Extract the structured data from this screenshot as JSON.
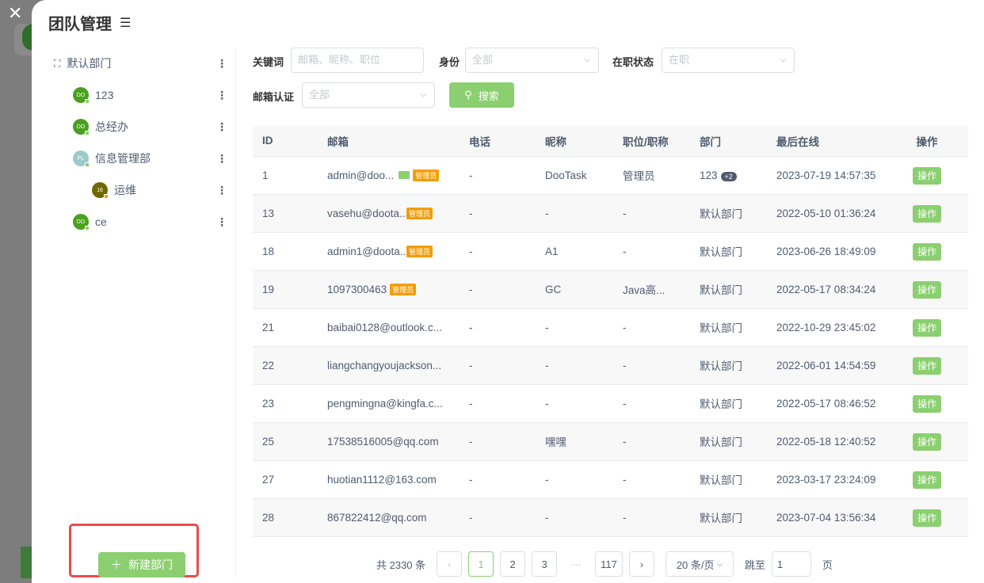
{
  "title": "团队管理",
  "sidebar": {
    "items": [
      {
        "label": "默认部门",
        "avatar": ""
      },
      {
        "label": "123",
        "avatar": "DO",
        "color": "#4aa11f"
      },
      {
        "label": "总经办",
        "avatar": "DO",
        "color": "#4aa11f"
      },
      {
        "label": "信息管理部",
        "avatar": "PL",
        "color": "#9ccac8"
      },
      {
        "label": "运维",
        "avatar": "16",
        "color": "#6f6a00"
      },
      {
        "label": "ce",
        "avatar": "DO",
        "color": "#4aa11f"
      }
    ],
    "new_dept": "新建部门"
  },
  "filters": {
    "keyword_label": "关键词",
    "keyword_placeholder": "邮箱、昵称、职位",
    "identity_label": "身份",
    "identity_value": "全部",
    "status_label": "在职状态",
    "status_value": "在职",
    "email_label": "邮箱认证",
    "email_value": "全部",
    "search": "搜索"
  },
  "table": {
    "headers": [
      "ID",
      "邮箱",
      "电话",
      "昵称",
      "职位/职称",
      "部门",
      "最后在线",
      "操作"
    ],
    "admin_tag": "管理员",
    "op": "操作",
    "rows": [
      {
        "id": "1",
        "email": "admin@doo...",
        "admin": true,
        "mail": true,
        "phone": "-",
        "nick": "DooTask",
        "pos": "管理员",
        "dept": "123",
        "extra": "+2",
        "online": "2023-07-19 14:57:35"
      },
      {
        "id": "13",
        "email": "vasehu@doota...",
        "admin": true,
        "phone": "-",
        "nick": "-",
        "pos": "-",
        "dept": "默认部门",
        "online": "2022-05-10 01:36:24"
      },
      {
        "id": "18",
        "email": "admin1@doota...",
        "admin": true,
        "phone": "-",
        "nick": "A1",
        "pos": "-",
        "dept": "默认部门",
        "online": "2023-06-26 18:49:09"
      },
      {
        "id": "19",
        "email": "1097300463",
        "admin": true,
        "phone": "-",
        "nick": "GC",
        "pos": "Java高...",
        "dept": "默认部门",
        "online": "2022-05-17 08:34:24"
      },
      {
        "id": "21",
        "email": "baibai0128@outlook.c...",
        "phone": "-",
        "nick": "-",
        "pos": "-",
        "dept": "默认部门",
        "online": "2022-10-29 23:45:02"
      },
      {
        "id": "22",
        "email": "liangchangyoujackson...",
        "phone": "-",
        "nick": "-",
        "pos": "-",
        "dept": "默认部门",
        "online": "2022-06-01 14:54:59"
      },
      {
        "id": "23",
        "email": "pengmingna@kingfa.c...",
        "phone": "-",
        "nick": "-",
        "pos": "-",
        "dept": "默认部门",
        "online": "2022-05-17 08:46:52"
      },
      {
        "id": "25",
        "email": "17538516005@qq.com",
        "phone": "-",
        "nick": "嘿嘿",
        "pos": "-",
        "dept": "默认部门",
        "online": "2022-05-18 12:40:52"
      },
      {
        "id": "27",
        "email": "huotian1112@163.com",
        "phone": "-",
        "nick": "-",
        "pos": "-",
        "dept": "默认部门",
        "online": "2023-03-17 23:24:09"
      },
      {
        "id": "28",
        "email": "867822412@qq.com",
        "phone": "-",
        "nick": "-",
        "pos": "-",
        "dept": "默认部门",
        "online": "2023-07-04 13:56:34"
      }
    ]
  },
  "pagination": {
    "total": "共 2330 条",
    "pages": [
      "1",
      "2",
      "3",
      "···",
      "117"
    ],
    "current": "1",
    "page_size": "20 条/页",
    "jump_label": "跳至",
    "jump_value": "1",
    "page_unit": "页"
  }
}
